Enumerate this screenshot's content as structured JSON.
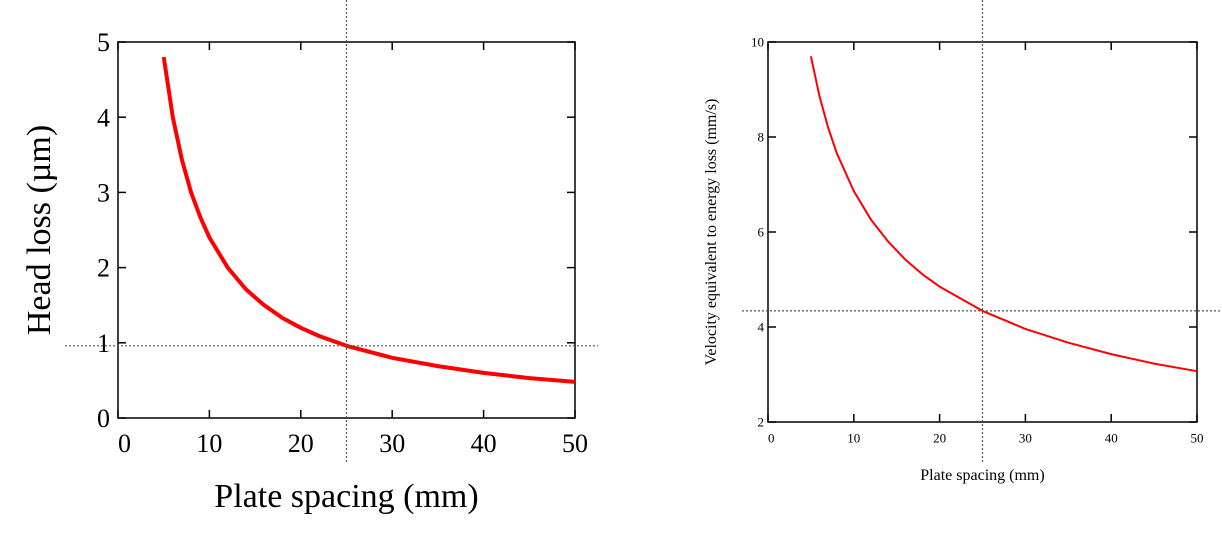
{
  "chart_data": [
    {
      "type": "line",
      "x_label": "Plate spacing (mm)",
      "y_label": "Head loss (µm)",
      "x": [
        5,
        6,
        7,
        8,
        9,
        10,
        12,
        14,
        16,
        18,
        20,
        22,
        25,
        30,
        35,
        40,
        45,
        50
      ],
      "values": [
        4.8,
        4.0,
        3.43,
        3.0,
        2.67,
        2.4,
        2.0,
        1.71,
        1.5,
        1.33,
        1.2,
        1.09,
        0.96,
        0.8,
        0.69,
        0.6,
        0.53,
        0.48
      ],
      "color": "#ff0000",
      "xlim": [
        0,
        50
      ],
      "ylim": [
        0,
        5
      ],
      "xticks": [
        0,
        10,
        20,
        30,
        40,
        50
      ],
      "yticks": [
        0,
        1,
        2,
        3,
        4,
        5
      ],
      "reference_lines": {
        "x": 25,
        "y": 0.96
      }
    },
    {
      "type": "line",
      "x_label": "Plate spacing (mm)",
      "y_label": "Velocity equivalent to energy loss (mm/s)",
      "x": [
        5,
        6,
        7,
        8,
        10,
        12,
        14,
        16,
        18,
        20,
        25,
        30,
        35,
        40,
        45,
        50
      ],
      "values": [
        9.7,
        8.86,
        8.2,
        7.67,
        6.86,
        6.26,
        5.8,
        5.42,
        5.11,
        4.85,
        4.34,
        3.96,
        3.67,
        3.43,
        3.23,
        3.07
      ],
      "color": "#ff0000",
      "xlim": [
        0,
        50
      ],
      "ylim": [
        2,
        10
      ],
      "xticks": [
        0,
        10,
        20,
        30,
        40,
        50
      ],
      "yticks": [
        2,
        4,
        6,
        8,
        10
      ],
      "reference_lines": {
        "x": 25,
        "y": 4.34
      }
    }
  ]
}
